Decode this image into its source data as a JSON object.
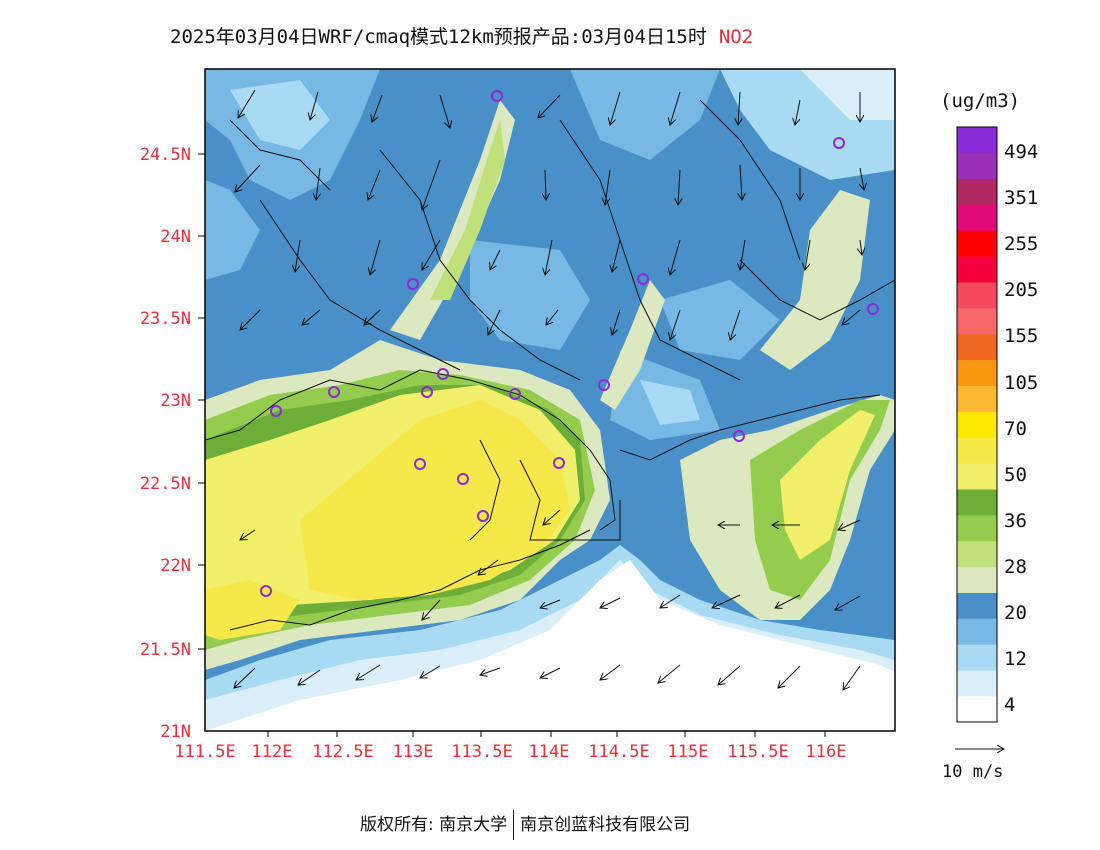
{
  "title": {
    "text": "2025年03月04日WRF/cmaq模式12km预报产品:03月04日15时",
    "species": "NO2"
  },
  "map": {
    "lat_labels": [
      "24.5N",
      "24N",
      "23.5N",
      "23N",
      "22.5N",
      "22N",
      "21.5N",
      "21N"
    ],
    "lon_labels": [
      "111.5E",
      "112E",
      "112.5E",
      "113E",
      "113.5E",
      "114E",
      "114.5E",
      "115E",
      "115.5E",
      "116E"
    ]
  },
  "legend": {
    "unit": "(ug/m3)",
    "colors": [
      "#ffffff",
      "#dbeffa",
      "#a8dbf3",
      "#78b8e4",
      "#4a90c8",
      "#dbe8c0",
      "#c0e07a",
      "#94cc4e",
      "#6cae38",
      "#f2f06a",
      "#f5e848",
      "#fde600",
      "#f8b830",
      "#f89810",
      "#ef6820",
      "#f86868",
      "#f54a5e",
      "#f5003c",
      "#ff0000",
      "#e00a78",
      "#b02860",
      "#9a30b8",
      "#8a2ad8"
    ],
    "labels": [
      "494",
      "351",
      "255",
      "205",
      "155",
      "105",
      "70",
      "50",
      "36",
      "28",
      "20",
      "12",
      "4"
    ],
    "wind_ref": "10 m/s"
  },
  "footer": {
    "left": "版权所有: 南京大学",
    "right": "南京创蓝科技有限公司"
  }
}
